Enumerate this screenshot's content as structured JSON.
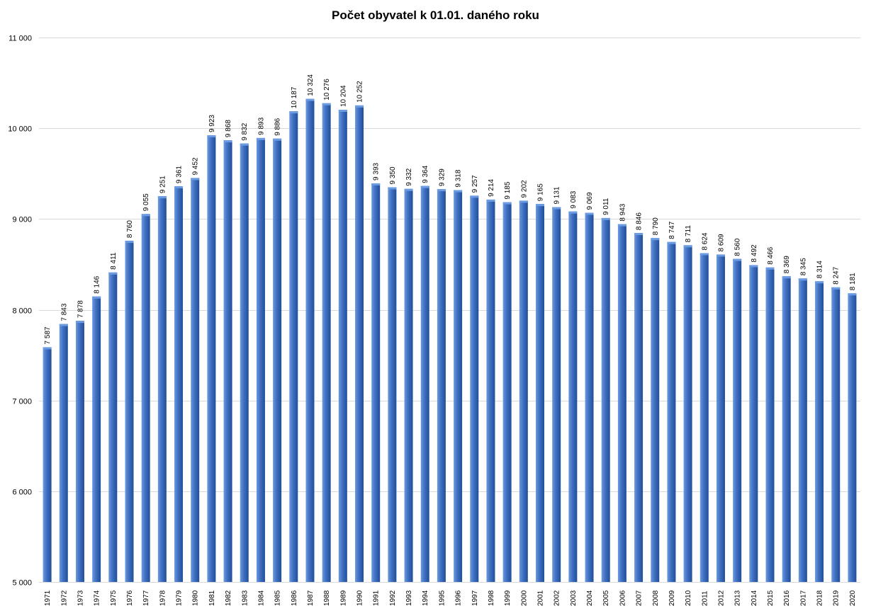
{
  "chart_data": {
    "type": "bar",
    "title": "Počet obyvatel k 01.01. daného roku",
    "xlabel": "",
    "ylabel": "",
    "ylim": [
      5000,
      11000
    ],
    "ytick_values": [
      5000,
      6000,
      7000,
      8000,
      9000,
      10000,
      11000
    ],
    "ytick_labels": [
      "5 000",
      "6 000",
      "7 000",
      "8 000",
      "9 000",
      "10 000",
      "11 000"
    ],
    "grid": "horizontal",
    "legend": "none",
    "bar_color": "#4472C4",
    "bar_highlight_color": "#6B9BE0",
    "bar_shadow_color": "#1F4E9A",
    "grid_color": "#D9D9D9",
    "categories": [
      "1971",
      "1972",
      "1973",
      "1974",
      "1975",
      "1976",
      "1977",
      "1978",
      "1979",
      "1980",
      "1981",
      "1982",
      "1983",
      "1984",
      "1985",
      "1986",
      "1987",
      "1988",
      "1989",
      "1990",
      "1991",
      "1992",
      "1993",
      "1994",
      "1995",
      "1996",
      "1997",
      "1998",
      "1999",
      "2000",
      "2001",
      "2002",
      "2003",
      "2004",
      "2005",
      "2006",
      "2007",
      "2008",
      "2009",
      "2010",
      "2011",
      "2012",
      "2013",
      "2014",
      "2015",
      "2016",
      "2017",
      "2018",
      "2019",
      "2020"
    ],
    "values": [
      7587,
      7843,
      7878,
      8146,
      8411,
      8760,
      9055,
      9251,
      9361,
      9452,
      9923,
      9868,
      9832,
      9893,
      9886,
      10187,
      10324,
      10276,
      10204,
      10252,
      9393,
      9350,
      9332,
      9364,
      9329,
      9318,
      9257,
      9214,
      9185,
      9202,
      9165,
      9131,
      9083,
      9069,
      9011,
      8943,
      8846,
      8790,
      8747,
      8711,
      8624,
      8609,
      8560,
      8492,
      8466,
      8369,
      8345,
      8314,
      8247,
      8181
    ],
    "data_labels": [
      "7 587",
      "7 843",
      "7 878",
      "8 146",
      "8 411",
      "8 760",
      "9 055",
      "9 251",
      "9 361",
      "9 452",
      "9 923",
      "9 868",
      "9 832",
      "9 893",
      "9 886",
      "10 187",
      "10 324",
      "10 276",
      "10 204",
      "10 252",
      "9 393",
      "9 350",
      "9 332",
      "9 364",
      "9 329",
      "9 318",
      "9 257",
      "9 214",
      "9 185",
      "9 202",
      "9 165",
      "9 131",
      "9 083",
      "9 069",
      "9 011",
      "8 943",
      "8 846",
      "8 790",
      "8 747",
      "8 711",
      "8 624",
      "8 609",
      "8 560",
      "8 492",
      "8 466",
      "8 369",
      "8 345",
      "8 314",
      "8 247",
      "8 181"
    ]
  }
}
